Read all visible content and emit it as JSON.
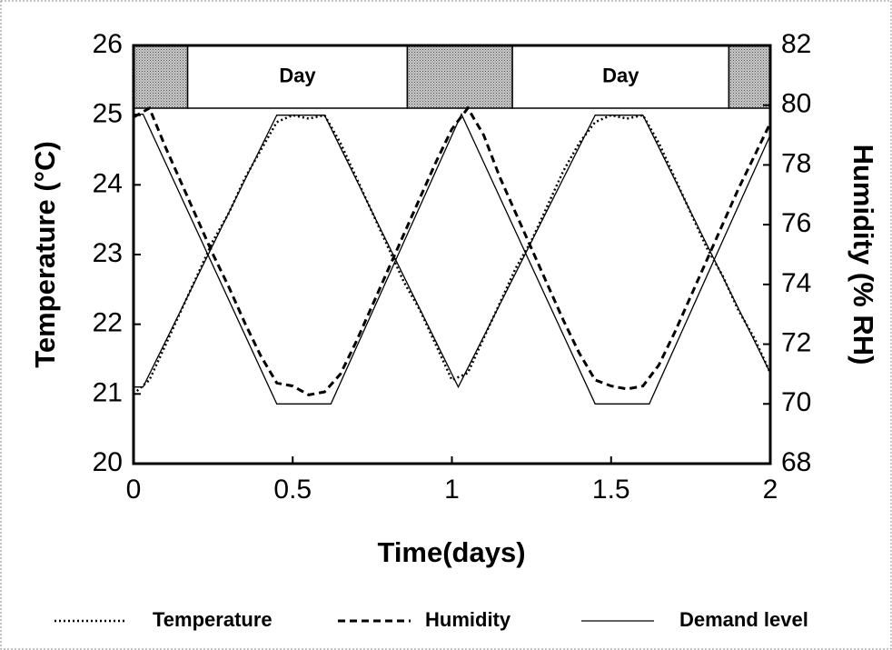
{
  "chart_data": {
    "type": "line",
    "xlabel": "Time(days)",
    "ylabel": "Temperature (°C)",
    "y2label": "Humidity (% RH)",
    "xlim": [
      0,
      2
    ],
    "xticks": [
      0,
      0.5,
      1,
      1.5,
      2
    ],
    "ylim": [
      20,
      26
    ],
    "yticks": [
      20,
      21,
      22,
      23,
      24,
      25,
      26
    ],
    "y2lim": [
      68,
      82
    ],
    "y2ticks": [
      68,
      70,
      72,
      74,
      76,
      78,
      80,
      82
    ],
    "band_ylim": [
      25.1,
      26
    ],
    "bands": [
      {
        "x": [
          0,
          0.17
        ],
        "shaded": true
      },
      {
        "x": [
          0.17,
          0.86
        ],
        "label": "Day"
      },
      {
        "x": [
          0.86,
          1.19
        ],
        "shaded": true
      },
      {
        "x": [
          1.19,
          1.87
        ],
        "label": "Day"
      },
      {
        "x": [
          1.87,
          2
        ],
        "shaded": true
      }
    ],
    "legend": "bottom",
    "series": [
      {
        "name": "Temperature",
        "style": "dotted",
        "color": "#000",
        "axis": "y",
        "x": [
          0,
          0.05,
          0.1,
          0.15,
          0.2,
          0.25,
          0.3,
          0.35,
          0.4,
          0.45,
          0.5,
          0.55,
          0.6,
          0.65,
          0.7,
          0.75,
          0.8,
          0.85,
          0.9,
          0.95,
          1,
          1.05,
          1.1,
          1.15,
          1.2,
          1.25,
          1.3,
          1.35,
          1.4,
          1.45,
          1.5,
          1.55,
          1.6,
          1.65,
          1.7,
          1.75,
          1.8,
          1.85,
          1.9,
          1.95,
          2
        ],
        "values": [
          21.0,
          21.2,
          21.7,
          22.2,
          22.7,
          23.2,
          23.6,
          24.1,
          24.5,
          24.9,
          25.0,
          24.95,
          25.0,
          24.6,
          24.1,
          23.6,
          23.1,
          22.6,
          22.2,
          21.7,
          21.2,
          21.3,
          21.8,
          22.3,
          22.8,
          23.2,
          23.7,
          24.2,
          24.6,
          24.9,
          25.0,
          24.95,
          25.0,
          24.6,
          24.1,
          23.6,
          23.1,
          22.7,
          22.2,
          21.8,
          21.3
        ]
      },
      {
        "name": "Humidity",
        "style": "dashed",
        "color": "#000",
        "axis": "y2",
        "x": [
          0,
          0.05,
          0.1,
          0.15,
          0.2,
          0.25,
          0.3,
          0.35,
          0.4,
          0.45,
          0.5,
          0.55,
          0.6,
          0.65,
          0.7,
          0.75,
          0.8,
          0.85,
          0.9,
          0.95,
          1,
          1.05,
          1.1,
          1.15,
          1.2,
          1.25,
          1.3,
          1.35,
          1.4,
          1.45,
          1.5,
          1.55,
          1.6,
          1.65,
          1.7,
          1.75,
          1.8,
          1.85,
          1.9,
          1.95,
          2
        ],
        "values": [
          79.6,
          79.9,
          78.6,
          77.4,
          76.2,
          75.0,
          73.9,
          72.7,
          71.6,
          70.7,
          70.6,
          70.3,
          70.4,
          71.0,
          72.1,
          73.3,
          74.5,
          75.7,
          76.9,
          78.1,
          79.2,
          79.9,
          79.0,
          77.6,
          76.4,
          75.2,
          74.0,
          72.8,
          71.7,
          70.8,
          70.6,
          70.5,
          70.6,
          71.3,
          72.4,
          73.6,
          74.8,
          76.0,
          77.2,
          78.3,
          79.4
        ]
      },
      {
        "name": "Demand level",
        "style": "solid",
        "color": "#000",
        "lines": [
          {
            "axis": "y",
            "x": [
              0,
              0.03,
              0.45,
              0.6,
              1.02,
              1.45,
              1.6,
              2
            ],
            "values": [
              21.1,
              21.1,
              25,
              25,
              21.1,
              25,
              25,
              21.3
            ]
          },
          {
            "axis": "y2",
            "x": [
              0,
              0.03,
              0.45,
              0.62,
              1.03,
              1.45,
              1.62,
              2
            ],
            "values": [
              79.7,
              79.7,
              70,
              70,
              79.7,
              70,
              70,
              79.0
            ]
          }
        ]
      }
    ]
  }
}
